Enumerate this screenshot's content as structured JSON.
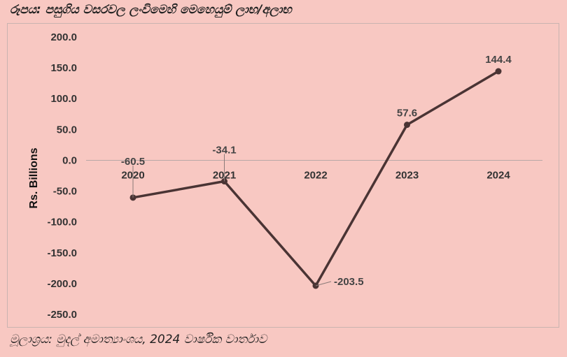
{
  "title": "රූපය: පසුගිය වසරවල ලංවිමෙහි මෙහෙයුම් ලාභ/අලාභ",
  "source": "මූලාශ්‍රය: මුදල් අමාත්‍යාංශය, 2024 වාර්ෂික වාර්තාව",
  "chart_data": {
    "type": "line",
    "title": "",
    "xlabel": "",
    "ylabel": "Rs. Billions",
    "ylim": [
      -250,
      200
    ],
    "yticks": [
      "200.0",
      "150.0",
      "100.0",
      "50.0",
      "0.0",
      "-50.0",
      "-100.0",
      "-150.0",
      "-200.0",
      "-250.0"
    ],
    "categories": [
      "2020",
      "2021",
      "2022",
      "2023",
      "2024"
    ],
    "series": [
      {
        "values": [
          -60.5,
          -34.1,
          -203.5,
          57.6,
          144.4
        ],
        "labels": [
          "-60.5",
          "-34.1",
          "-203.5",
          "57.6",
          "144.4"
        ],
        "color": "#4a3434"
      }
    ],
    "grid": false,
    "legend": "none"
  }
}
